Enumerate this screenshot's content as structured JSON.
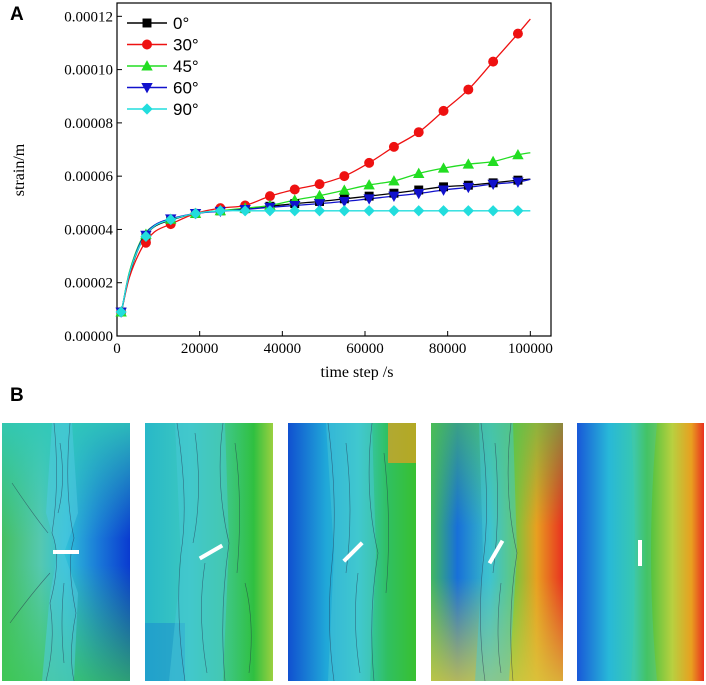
{
  "panel_a_label": "A",
  "panel_b_label": "B",
  "chart_data": {
    "type": "line",
    "title": "",
    "xlabel": "time step /s",
    "ylabel": "strain/m",
    "xlim": [
      0,
      105000
    ],
    "ylim": [
      0,
      0.000125
    ],
    "xticks": [
      0,
      20000,
      40000,
      60000,
      80000,
      100000
    ],
    "xtick_labels": [
      "0",
      "20000",
      "40000",
      "60000",
      "80000",
      "100000"
    ],
    "yticks": [
      0,
      2e-05,
      4e-05,
      6e-05,
      8e-05,
      0.0001,
      0.00012
    ],
    "ytick_labels": [
      "0.00000",
      "0.00002",
      "0.00004",
      "0.00006",
      "0.00008",
      "0.00010",
      "0.00012"
    ],
    "legend_position": "top-left",
    "series": [
      {
        "name": "0°",
        "color": "#000000",
        "marker": "square",
        "x": [
          0,
          1000,
          3000,
          6000,
          9000,
          13000,
          19000,
          25000,
          31000,
          37000,
          43000,
          49000,
          55000,
          61000,
          67000,
          73000,
          79000,
          85000,
          91000,
          97000,
          100000
        ],
        "y": [
          8.5e-06,
          9e-06,
          2.3e-05,
          3.55e-05,
          4.1e-05,
          4.35e-05,
          4.6e-05,
          4.7e-05,
          4.78e-05,
          4.87e-05,
          4.97e-05,
          5.05e-05,
          5.15e-05,
          5.25e-05,
          5.36e-05,
          5.48e-05,
          5.6e-05,
          5.66e-05,
          5.75e-05,
          5.85e-05,
          5.89e-05
        ],
        "marker_x": [
          1000,
          7000,
          13000,
          19000,
          25000,
          31000,
          37000,
          43000,
          49000,
          55000,
          61000,
          67000,
          73000,
          79000,
          85000,
          91000,
          97000
        ]
      },
      {
        "name": "30°",
        "color": "#ee1111",
        "marker": "circle",
        "x": [
          0,
          1000,
          3000,
          6000,
          9000,
          13000,
          19000,
          25000,
          31000,
          37000,
          43000,
          49000,
          55000,
          61000,
          67000,
          73000,
          79000,
          85000,
          91000,
          97000,
          100000
        ],
        "y": [
          8.5e-06,
          9e-06,
          2.2e-05,
          3.3e-05,
          3.9e-05,
          4.2e-05,
          4.6e-05,
          4.8e-05,
          4.9e-05,
          5.25e-05,
          5.5e-05,
          5.7e-05,
          6e-05,
          6.5e-05,
          7.1e-05,
          7.65e-05,
          8.45e-05,
          9.25e-05,
          0.000103,
          0.0001135,
          0.000119
        ],
        "marker_x": [
          1000,
          7000,
          13000,
          19000,
          25000,
          31000,
          37000,
          43000,
          49000,
          55000,
          61000,
          67000,
          73000,
          79000,
          85000,
          91000,
          97000
        ]
      },
      {
        "name": "45°",
        "color": "#22dd22",
        "marker": "triangle-up",
        "x": [
          0,
          1000,
          3000,
          6000,
          9000,
          13000,
          19000,
          25000,
          31000,
          37000,
          43000,
          49000,
          55000,
          61000,
          67000,
          73000,
          79000,
          85000,
          91000,
          97000,
          100000
        ],
        "y": [
          8.5e-06,
          9e-06,
          2.4e-05,
          3.65e-05,
          4.15e-05,
          4.38e-05,
          4.6e-05,
          4.7e-05,
          4.8e-05,
          4.9e-05,
          5.1e-05,
          5.27e-05,
          5.47e-05,
          5.67e-05,
          5.82e-05,
          6.1e-05,
          6.3e-05,
          6.45e-05,
          6.55e-05,
          6.8e-05,
          6.88e-05
        ],
        "marker_x": [
          1000,
          7000,
          13000,
          19000,
          25000,
          31000,
          37000,
          43000,
          49000,
          55000,
          61000,
          67000,
          73000,
          79000,
          85000,
          91000,
          97000
        ]
      },
      {
        "name": "60°",
        "color": "#1111cc",
        "marker": "triangle-down",
        "x": [
          0,
          1000,
          3000,
          6000,
          9000,
          13000,
          19000,
          25000,
          31000,
          37000,
          43000,
          49000,
          55000,
          61000,
          67000,
          73000,
          79000,
          85000,
          91000,
          97000,
          100000
        ],
        "y": [
          8.5e-06,
          9e-06,
          2.35e-05,
          3.6e-05,
          4.15e-05,
          4.4e-05,
          4.6e-05,
          4.68e-05,
          4.75e-05,
          4.83e-05,
          4.9e-05,
          4.97e-05,
          5.05e-05,
          5.15e-05,
          5.25e-05,
          5.35e-05,
          5.48e-05,
          5.58e-05,
          5.7e-05,
          5.78e-05,
          5.88e-05
        ],
        "marker_x": [
          1000,
          7000,
          13000,
          19000,
          25000,
          31000,
          37000,
          43000,
          49000,
          55000,
          61000,
          67000,
          73000,
          79000,
          85000,
          91000,
          97000
        ]
      },
      {
        "name": "90°",
        "color": "#22dddd",
        "marker": "diamond",
        "x": [
          0,
          1000,
          3000,
          6000,
          9000,
          13000,
          19000,
          25000,
          31000,
          37000,
          43000,
          49000,
          55000,
          61000,
          67000,
          73000,
          79000,
          85000,
          91000,
          97000,
          100000
        ],
        "y": [
          8.5e-06,
          9e-06,
          2.35e-05,
          3.55e-05,
          4.12e-05,
          4.37e-05,
          4.6e-05,
          4.7e-05,
          4.7e-05,
          4.7e-05,
          4.7e-05,
          4.7e-05,
          4.7e-05,
          4.7e-05,
          4.7e-05,
          4.7e-05,
          4.7e-05,
          4.7e-05,
          4.7e-05,
          4.7e-05,
          4.7e-05
        ],
        "marker_x": [
          1000,
          7000,
          13000,
          19000,
          25000,
          31000,
          37000,
          43000,
          49000,
          55000,
          61000,
          67000,
          73000,
          79000,
          85000,
          91000,
          97000
        ]
      }
    ]
  },
  "panel_b": {
    "crack_angles_deg": [
      0,
      30,
      45,
      60,
      90
    ]
  }
}
